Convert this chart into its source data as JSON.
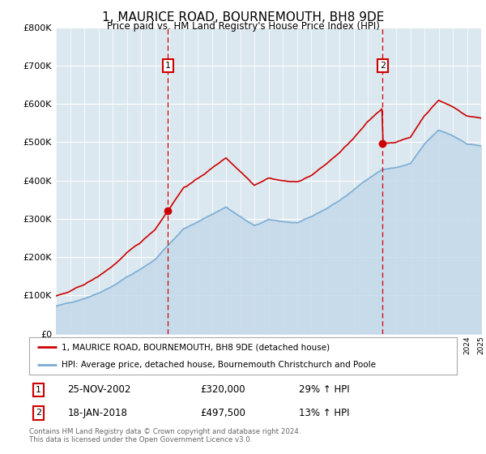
{
  "title": "1, MAURICE ROAD, BOURNEMOUTH, BH8 9DE",
  "subtitle": "Price paid vs. HM Land Registry's House Price Index (HPI)",
  "sale_color": "#cc0000",
  "hpi_color": "#7aadd4",
  "hpi_fill_color": "#c5d9ea",
  "vline_color": "#cc0000",
  "ylim": [
    0,
    800000
  ],
  "yticks": [
    0,
    100000,
    200000,
    300000,
    400000,
    500000,
    600000,
    700000,
    800000
  ],
  "sale1_date_num": 2002.9,
  "sale1_price": 320000,
  "sale1_label": "1",
  "sale1_display": "25-NOV-2002",
  "sale1_amount": "£320,000",
  "sale1_hpi": "29% ↑ HPI",
  "sale2_date_num": 2018.05,
  "sale2_price": 497500,
  "sale2_label": "2",
  "sale2_display": "18-JAN-2018",
  "sale2_amount": "£497,500",
  "sale2_hpi": "13% ↑ HPI",
  "legend_line1": "1, MAURICE ROAD, BOURNEMOUTH, BH8 9DE (detached house)",
  "legend_line2": "HPI: Average price, detached house, Bournemouth Christchurch and Poole",
  "footer": "Contains HM Land Registry data © Crown copyright and database right 2024.\nThis data is licensed under the Open Government Licence v3.0.",
  "xmin": 1995,
  "xmax": 2025,
  "plot_bg": "#dce8f0"
}
